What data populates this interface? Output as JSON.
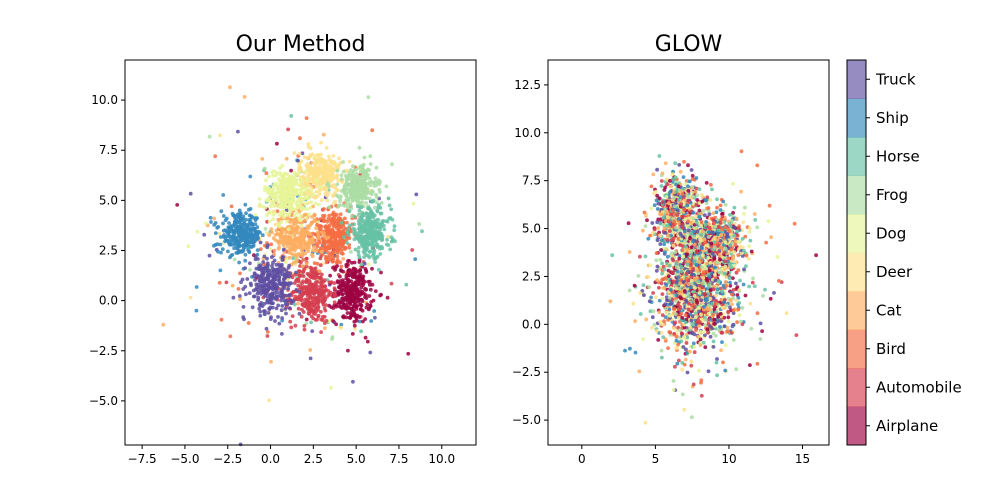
{
  "chart_data": [
    {
      "type": "scatter",
      "title": "Our Method",
      "xlabel": "",
      "ylabel": "",
      "xlim": [
        -8.5,
        12.0
      ],
      "ylim": [
        -7.2,
        12.0
      ],
      "xticks": [
        -7.5,
        -5.0,
        -2.5,
        0.0,
        2.5,
        5.0,
        7.5,
        10.0
      ],
      "xtick_labels": [
        "−7.5",
        "−5.0",
        "−2.5",
        "0.0",
        "2.5",
        "5.0",
        "7.5",
        "10.0"
      ],
      "yticks": [
        -5.0,
        -2.5,
        0.0,
        2.5,
        5.0,
        7.5,
        10.0
      ],
      "ytick_labels": [
        "−5.0",
        "−2.5",
        "0.0",
        "2.5",
        "5.0",
        "7.5",
        "10.0"
      ],
      "clusters": [
        {
          "class": "Airplane",
          "center": [
            4.8,
            0.4
          ],
          "spread": [
            0.55,
            0.75
          ]
        },
        {
          "class": "Automobile",
          "center": [
            2.4,
            0.4
          ],
          "spread": [
            0.6,
            0.75
          ]
        },
        {
          "class": "Bird",
          "center": [
            3.7,
            3.3
          ],
          "spread": [
            0.55,
            0.6
          ]
        },
        {
          "class": "Cat",
          "center": [
            1.5,
            3.2
          ],
          "spread": [
            0.65,
            0.6
          ]
        },
        {
          "class": "Deer",
          "center": [
            2.9,
            6.3
          ],
          "spread": [
            0.6,
            0.55
          ]
        },
        {
          "class": "Dog",
          "center": [
            1.0,
            5.3
          ],
          "spread": [
            0.7,
            0.6
          ]
        },
        {
          "class": "Frog",
          "center": [
            5.1,
            5.6
          ],
          "spread": [
            0.55,
            0.55
          ]
        },
        {
          "class": "Horse",
          "center": [
            5.8,
            3.4
          ],
          "spread": [
            0.6,
            0.6
          ]
        },
        {
          "class": "Ship",
          "center": [
            -1.7,
            3.3
          ],
          "spread": [
            0.6,
            0.5
          ]
        },
        {
          "class": "Truck",
          "center": [
            0.0,
            0.8
          ],
          "spread": [
            0.65,
            0.7
          ]
        }
      ]
    },
    {
      "type": "scatter",
      "title": "GLOW",
      "xlabel": "",
      "ylabel": "",
      "xlim": [
        -2.3,
        16.8
      ],
      "ylim": [
        -6.3,
        13.8
      ],
      "xticks": [
        0,
        5,
        10,
        15
      ],
      "xtick_labels": [
        "0",
        "5",
        "10",
        "15"
      ],
      "yticks": [
        -5.0,
        -2.5,
        0.0,
        2.5,
        5.0,
        7.5,
        10.0,
        12.5
      ],
      "ytick_labels": [
        "−5.0",
        "−2.5",
        "0.0",
        "2.5",
        "5.0",
        "7.5",
        "10.0",
        "12.5"
      ],
      "blobs": [
        {
          "center": [
            7.8,
            2.0
          ],
          "spread": [
            1.35,
            1.6
          ]
        },
        {
          "center": [
            6.6,
            6.0
          ],
          "spread": [
            0.8,
            0.9
          ]
        },
        {
          "center": [
            9.2,
            4.4
          ],
          "spread": [
            0.9,
            0.7
          ]
        }
      ]
    }
  ],
  "colorbar": {
    "classes": [
      "Airplane",
      "Automobile",
      "Bird",
      "Cat",
      "Deer",
      "Dog",
      "Frog",
      "Horse",
      "Ship",
      "Truck"
    ],
    "colors": [
      "#9e0142",
      "#d53e4f",
      "#f46d43",
      "#fdae61",
      "#fee08b",
      "#e6f598",
      "#abdda4",
      "#66c2a5",
      "#3288bd",
      "#5e4fa2"
    ]
  }
}
